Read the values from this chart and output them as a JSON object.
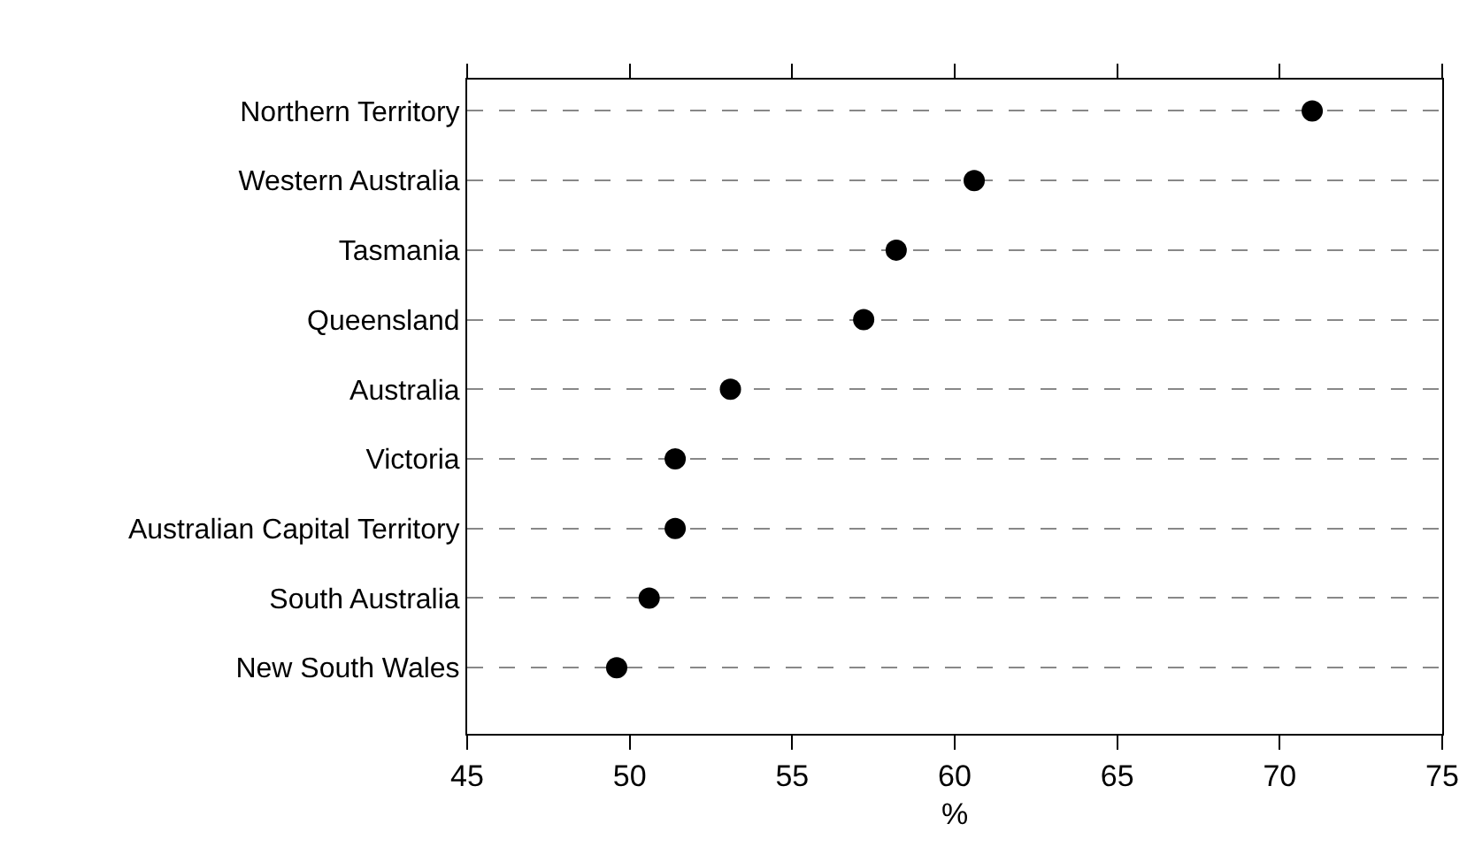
{
  "chart_data": {
    "type": "scatter",
    "orientation": "horizontal",
    "xlabel": "%",
    "categories": [
      "Northern Territory",
      "Western Australia",
      "Tasmania",
      "Queensland",
      "Australia",
      "Victoria",
      "Australian Capital Territory",
      "South Australia",
      "New South Wales"
    ],
    "series": [
      {
        "color": "#000000",
        "values": [
          71.0,
          60.6,
          58.2,
          57.2,
          53.1,
          51.4,
          51.4,
          50.6,
          49.6
        ]
      }
    ],
    "xlim": [
      45,
      75
    ],
    "xticks": [
      45,
      50,
      55,
      60,
      65,
      70,
      75
    ],
    "grid": "y",
    "marker": "circle"
  }
}
